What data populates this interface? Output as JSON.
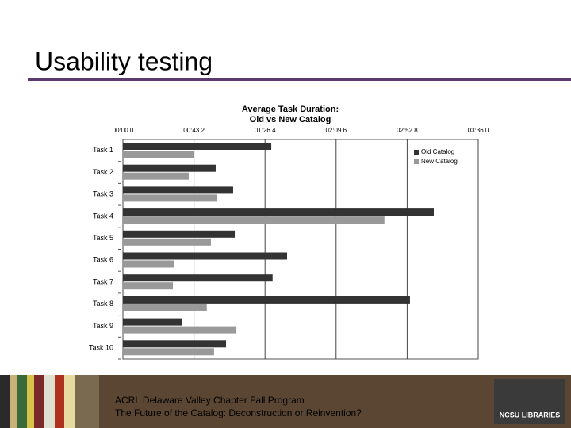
{
  "slide": {
    "title": "Usability testing",
    "footer": [
      "ACRL Delaware Valley Chapter Fall Program",
      "The Future of the Catalog: Deconstruction or Reinvention?"
    ],
    "logo": "NCSU LIBRARIES"
  },
  "chart_data": {
    "type": "bar",
    "orientation": "horizontal",
    "title": "Average Task Duration:",
    "subtitle": "Old vs New Catalog",
    "categories": [
      "Task 1",
      "Task 2",
      "Task 3",
      "Task 4",
      "Task 5",
      "Task 6",
      "Task 7",
      "Task 8",
      "Task 9",
      "Task 10"
    ],
    "series": [
      {
        "name": "Old Catalog",
        "color": "#333333",
        "values": [
          90.2,
          56.4,
          67,
          189,
          68,
          99.8,
          91,
          174.5,
          36,
          62.7
        ]
      },
      {
        "name": "New Catalog",
        "color": "#999999",
        "values": [
          43.4,
          40,
          57.4,
          159,
          53.5,
          31.3,
          30.4,
          51,
          69,
          55.4
        ]
      }
    ],
    "xlim": [
      0,
      216
    ],
    "xticks": [
      {
        "value": 0,
        "label": "00:00.0"
      },
      {
        "value": 43.2,
        "label": "00:43.2"
      },
      {
        "value": 86.4,
        "label": "01:26.4"
      },
      {
        "value": 129.6,
        "label": "02:09.6"
      },
      {
        "value": 172.8,
        "label": "02:52.8"
      },
      {
        "value": 216,
        "label": "03:36.0"
      }
    ],
    "grid": true,
    "legend": "upper right"
  }
}
